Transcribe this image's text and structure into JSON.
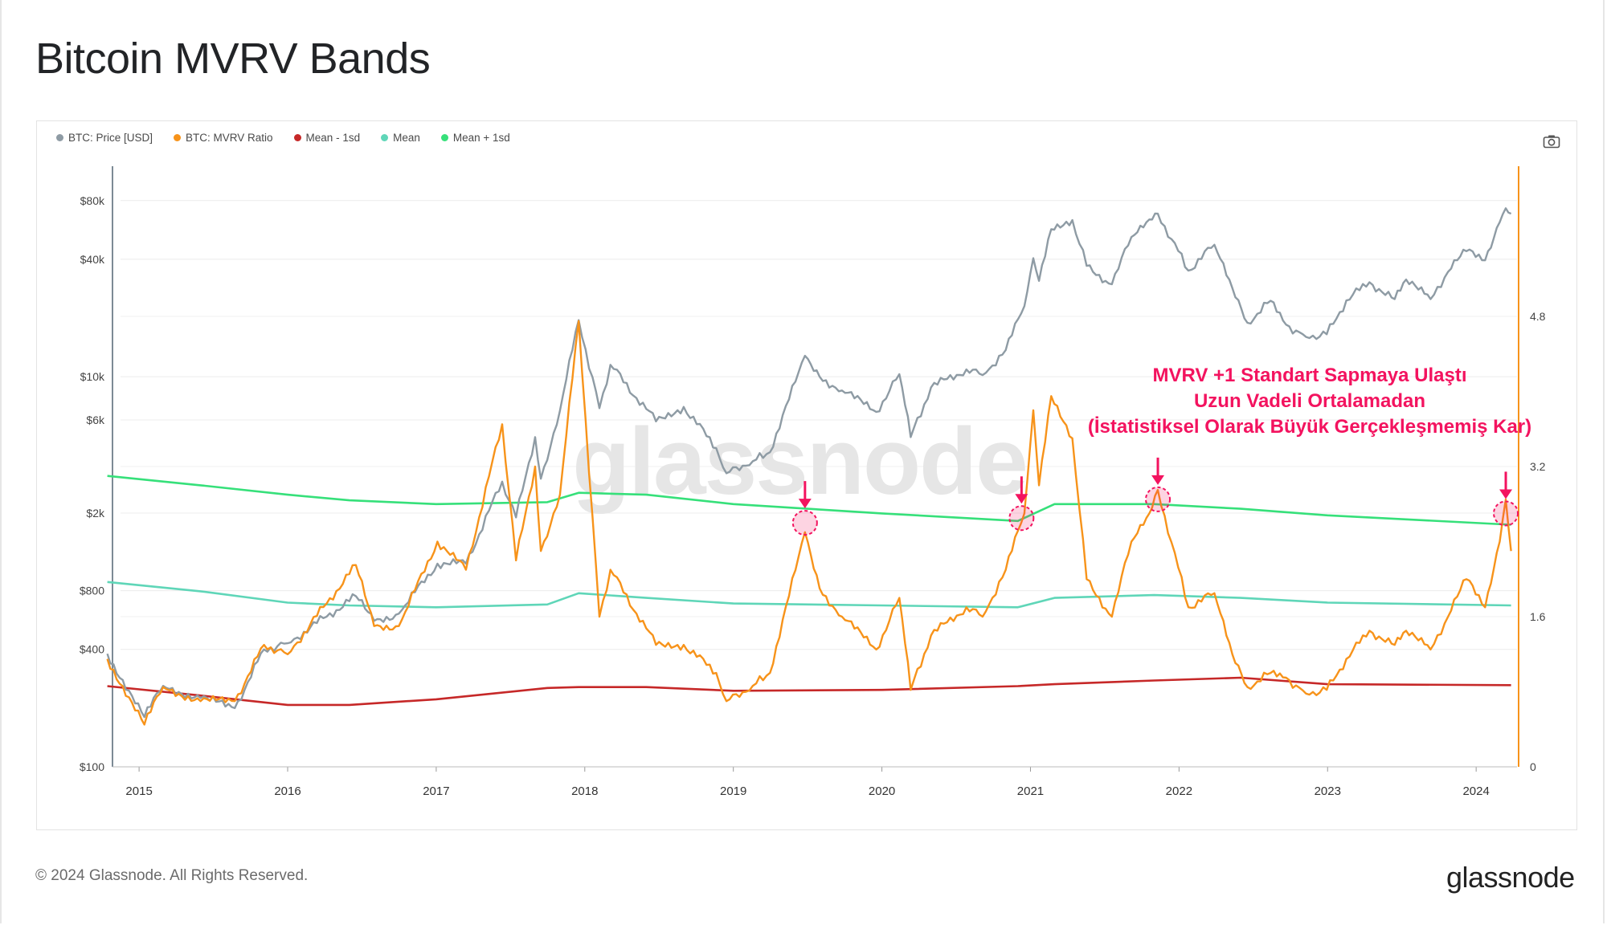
{
  "title": "Bitcoin MVRV Bands",
  "legend": [
    {
      "label": "BTC: Price [USD]",
      "color": "#8e9ba4"
    },
    {
      "label": "BTC: MVRV Ratio",
      "color": "#f7931a"
    },
    {
      "label": "Mean - 1sd",
      "color": "#c62828"
    },
    {
      "label": "Mean",
      "color": "#5fd6b8"
    },
    {
      "label": "Mean + 1sd",
      "color": "#36e07a"
    }
  ],
  "annotation": {
    "lines": [
      "MVRV +1 Standart Sapmaya Ulaştı",
      "Uzun Vadeli Ortalamadan",
      "(İstatistiksel Olarak Büyük Gerçekleşmemiş Kar)"
    ],
    "color": "#f3135f"
  },
  "watermark": "glassnode",
  "footer": {
    "copyright": "© 2024 Glassnode. All Rights Reserved.",
    "logo": "glassnode"
  },
  "icons": {
    "camera": "camera-icon"
  },
  "chart_data": {
    "type": "line",
    "title": "Bitcoin MVRV Bands",
    "x_ticks": [
      "2015",
      "2016",
      "2017",
      "2018",
      "2019",
      "2020",
      "2021",
      "2022",
      "2023",
      "2024"
    ],
    "y_left": {
      "scale": "log",
      "tick_labels": [
        "$80k",
        "$40k",
        "$10k",
        "$6k",
        "$2k",
        "$800",
        "$400",
        "$100"
      ],
      "tick_values": [
        80000,
        40000,
        10000,
        6000,
        2000,
        800,
        400,
        100
      ],
      "range": [
        100,
        120000
      ]
    },
    "y_right": {
      "scale": "linear",
      "tick_labels": [
        "4.8",
        "3.2",
        "1.6",
        "0"
      ],
      "tick_values": [
        4.8,
        3.2,
        1.6,
        0
      ],
      "range": [
        0,
        6.4
      ]
    },
    "series": [
      {
        "name": "BTC: Price [USD]",
        "axis": "left",
        "color": "#8e9ba4",
        "points": [
          [
            "2014-10-15",
            380
          ],
          [
            "2015-01-14",
            180
          ],
          [
            "2015-03-01",
            260
          ],
          [
            "2015-06-01",
            225
          ],
          [
            "2015-08-24",
            200
          ],
          [
            "2015-11-04",
            400
          ],
          [
            "2016-01-01",
            430
          ],
          [
            "2016-06-17",
            750
          ],
          [
            "2016-08-01",
            560
          ],
          [
            "2016-10-01",
            610
          ],
          [
            "2017-01-04",
            1100
          ],
          [
            "2017-03-15",
            1100
          ],
          [
            "2017-06-12",
            2900
          ],
          [
            "2017-07-16",
            1900
          ],
          [
            "2017-09-01",
            4900
          ],
          [
            "2017-09-15",
            3000
          ],
          [
            "2017-11-01",
            6700
          ],
          [
            "2017-12-17",
            19500
          ],
          [
            "2018-02-06",
            6900
          ],
          [
            "2018-03-05",
            11500
          ],
          [
            "2018-06-25",
            5900
          ],
          [
            "2018-09-01",
            7000
          ],
          [
            "2018-11-20",
            4300
          ],
          [
            "2018-12-15",
            3200
          ],
          [
            "2019-02-01",
            3500
          ],
          [
            "2019-04-01",
            4100
          ],
          [
            "2019-06-26",
            12800
          ],
          [
            "2019-08-01",
            10000
          ],
          [
            "2019-09-25",
            8500
          ],
          [
            "2019-12-18",
            6600
          ],
          [
            "2020-02-13",
            10300
          ],
          [
            "2020-03-12",
            4900
          ],
          [
            "2020-05-01",
            8800
          ],
          [
            "2020-07-27",
            10900
          ],
          [
            "2020-09-05",
            10200
          ],
          [
            "2020-11-01",
            13700
          ],
          [
            "2020-12-17",
            23000
          ],
          [
            "2021-01-08",
            40500
          ],
          [
            "2021-01-22",
            31000
          ],
          [
            "2021-02-21",
            57000
          ],
          [
            "2021-04-14",
            63500
          ],
          [
            "2021-05-19",
            37000
          ],
          [
            "2021-07-20",
            29800
          ],
          [
            "2021-09-06",
            52000
          ],
          [
            "2021-10-20",
            64000
          ],
          [
            "2021-11-10",
            68500
          ],
          [
            "2022-01-24",
            35000
          ],
          [
            "2022-03-29",
            47500
          ],
          [
            "2022-05-12",
            28500
          ],
          [
            "2022-06-18",
            18900
          ],
          [
            "2022-08-14",
            24500
          ],
          [
            "2022-09-21",
            18500
          ],
          [
            "2022-11-09",
            16000
          ],
          [
            "2022-12-30",
            16500
          ],
          [
            "2023-02-16",
            24600
          ],
          [
            "2023-04-14",
            30500
          ],
          [
            "2023-06-15",
            25000
          ],
          [
            "2023-07-13",
            31500
          ],
          [
            "2023-09-11",
            25000
          ],
          [
            "2023-10-24",
            34500
          ],
          [
            "2023-12-08",
            44000
          ],
          [
            "2024-01-23",
            39500
          ],
          [
            "2024-02-28",
            62000
          ],
          [
            "2024-03-14",
            73000
          ],
          [
            "2024-03-27",
            68500
          ]
        ]
      },
      {
        "name": "BTC: MVRV Ratio",
        "axis": "right",
        "color": "#f7931a",
        "points": [
          [
            "2014-10-15",
            1.15
          ],
          [
            "2015-01-14",
            0.45
          ],
          [
            "2015-03-01",
            0.85
          ],
          [
            "2015-06-01",
            0.7
          ],
          [
            "2015-08-24",
            0.7
          ],
          [
            "2015-11-04",
            1.3
          ],
          [
            "2016-01-01",
            1.2
          ],
          [
            "2016-06-17",
            2.15
          ],
          [
            "2016-08-01",
            1.5
          ],
          [
            "2016-10-01",
            1.5
          ],
          [
            "2017-01-04",
            2.4
          ],
          [
            "2017-03-15",
            2.1
          ],
          [
            "2017-06-12",
            3.65
          ],
          [
            "2017-07-16",
            2.2
          ],
          [
            "2017-09-01",
            3.2
          ],
          [
            "2017-09-15",
            2.3
          ],
          [
            "2017-11-01",
            2.9
          ],
          [
            "2017-12-17",
            4.75
          ],
          [
            "2018-02-06",
            1.6
          ],
          [
            "2018-03-05",
            2.1
          ],
          [
            "2018-06-25",
            1.3
          ],
          [
            "2018-09-01",
            1.3
          ],
          [
            "2018-11-20",
            1.0
          ],
          [
            "2018-12-15",
            0.7
          ],
          [
            "2019-02-01",
            0.8
          ],
          [
            "2019-04-01",
            1.0
          ],
          [
            "2019-06-26",
            2.5
          ],
          [
            "2019-08-01",
            1.9
          ],
          [
            "2019-09-25",
            1.6
          ],
          [
            "2019-12-18",
            1.25
          ],
          [
            "2020-02-13",
            1.8
          ],
          [
            "2020-03-12",
            0.82
          ],
          [
            "2020-05-01",
            1.4
          ],
          [
            "2020-07-27",
            1.7
          ],
          [
            "2020-09-05",
            1.6
          ],
          [
            "2020-11-01",
            2.1
          ],
          [
            "2020-12-17",
            2.7
          ],
          [
            "2021-01-08",
            3.8
          ],
          [
            "2021-01-22",
            3.0
          ],
          [
            "2021-02-21",
            3.95
          ],
          [
            "2021-04-14",
            3.5
          ],
          [
            "2021-05-19",
            2.0
          ],
          [
            "2021-07-20",
            1.6
          ],
          [
            "2021-09-06",
            2.4
          ],
          [
            "2021-10-20",
            2.7
          ],
          [
            "2021-11-10",
            2.95
          ],
          [
            "2022-01-24",
            1.7
          ],
          [
            "2022-03-29",
            1.85
          ],
          [
            "2022-05-12",
            1.2
          ],
          [
            "2022-06-18",
            0.85
          ],
          [
            "2022-08-14",
            1.0
          ],
          [
            "2022-09-21",
            0.95
          ],
          [
            "2022-11-09",
            0.78
          ],
          [
            "2022-12-30",
            0.82
          ],
          [
            "2023-02-16",
            1.15
          ],
          [
            "2023-04-14",
            1.45
          ],
          [
            "2023-06-15",
            1.3
          ],
          [
            "2023-07-13",
            1.45
          ],
          [
            "2023-09-11",
            1.25
          ],
          [
            "2023-10-24",
            1.6
          ],
          [
            "2023-12-08",
            2.0
          ],
          [
            "2024-01-23",
            1.7
          ],
          [
            "2024-02-28",
            2.4
          ],
          [
            "2024-03-14",
            2.85
          ],
          [
            "2024-03-27",
            2.3
          ]
        ]
      },
      {
        "name": "Mean + 1sd",
        "axis": "right",
        "color": "#36e07a",
        "points": [
          [
            "2014-10-15",
            3.1
          ],
          [
            "2015-06-01",
            3.0
          ],
          [
            "2016-01-01",
            2.9
          ],
          [
            "2016-06-01",
            2.84
          ],
          [
            "2017-01-01",
            2.8
          ],
          [
            "2017-10-01",
            2.82
          ],
          [
            "2017-12-17",
            2.92
          ],
          [
            "2018-06-01",
            2.9
          ],
          [
            "2019-01-01",
            2.8
          ],
          [
            "2020-01-01",
            2.7
          ],
          [
            "2020-12-01",
            2.62
          ],
          [
            "2021-03-01",
            2.8
          ],
          [
            "2021-11-01",
            2.8
          ],
          [
            "2022-06-01",
            2.75
          ],
          [
            "2023-01-01",
            2.68
          ],
          [
            "2024-03-27",
            2.58
          ]
        ]
      },
      {
        "name": "Mean",
        "axis": "right",
        "color": "#5fd6b8",
        "points": [
          [
            "2014-10-15",
            1.97
          ],
          [
            "2015-06-01",
            1.87
          ],
          [
            "2016-01-01",
            1.75
          ],
          [
            "2016-06-01",
            1.72
          ],
          [
            "2017-01-01",
            1.7
          ],
          [
            "2017-10-01",
            1.73
          ],
          [
            "2017-12-17",
            1.85
          ],
          [
            "2018-06-01",
            1.8
          ],
          [
            "2019-01-01",
            1.74
          ],
          [
            "2020-01-01",
            1.72
          ],
          [
            "2020-12-01",
            1.7
          ],
          [
            "2021-03-01",
            1.8
          ],
          [
            "2021-11-01",
            1.83
          ],
          [
            "2022-06-01",
            1.8
          ],
          [
            "2023-01-01",
            1.75
          ],
          [
            "2024-03-27",
            1.72
          ]
        ]
      },
      {
        "name": "Mean - 1sd",
        "axis": "right",
        "color": "#c62828",
        "points": [
          [
            "2014-10-15",
            0.86
          ],
          [
            "2015-06-01",
            0.76
          ],
          [
            "2016-01-01",
            0.66
          ],
          [
            "2016-06-01",
            0.66
          ],
          [
            "2017-01-01",
            0.72
          ],
          [
            "2017-10-01",
            0.84
          ],
          [
            "2017-12-17",
            0.85
          ],
          [
            "2018-06-01",
            0.85
          ],
          [
            "2019-01-01",
            0.81
          ],
          [
            "2020-01-01",
            0.82
          ],
          [
            "2020-12-01",
            0.86
          ],
          [
            "2021-03-01",
            0.88
          ],
          [
            "2021-11-01",
            0.92
          ],
          [
            "2022-06-01",
            0.95
          ],
          [
            "2023-01-01",
            0.88
          ],
          [
            "2024-03-27",
            0.87
          ]
        ]
      }
    ],
    "highlights": [
      {
        "date": "2019-06-26",
        "value": 2.6
      },
      {
        "date": "2020-12-10",
        "value": 2.65
      },
      {
        "date": "2021-11-10",
        "value": 2.85
      },
      {
        "date": "2024-03-14",
        "value": 2.7
      }
    ],
    "grid": true,
    "legend_position": "top-left"
  }
}
